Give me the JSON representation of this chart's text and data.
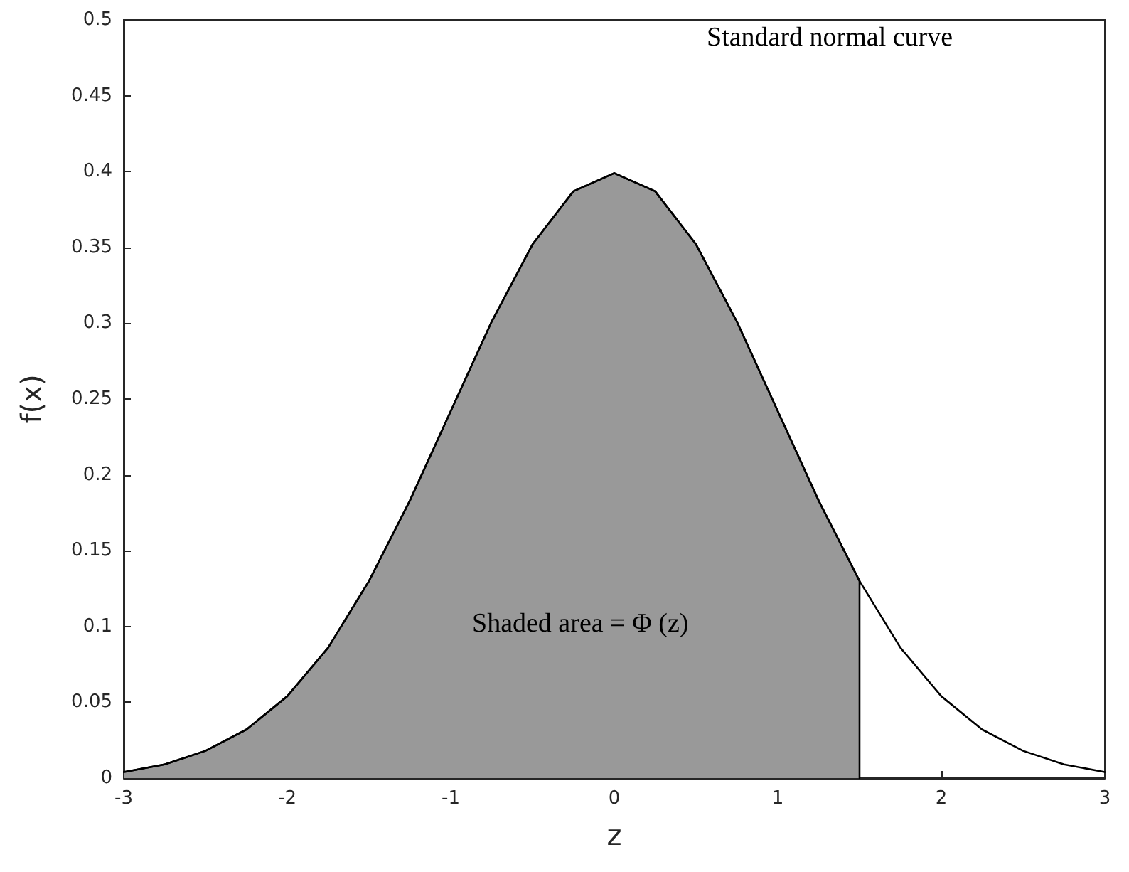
{
  "chart_data": {
    "type": "line",
    "xlabel": "z",
    "ylabel": "f(x)",
    "annotations": [
      "Standard normal curve",
      "Shaded area = Φ (z)"
    ],
    "xlim": [
      -3,
      3
    ],
    "xticks": [
      -3,
      -2,
      -1,
      0,
      1,
      2,
      3
    ],
    "ylim": [
      0,
      0.5
    ],
    "yticks": [
      0,
      0.05,
      0.1,
      0.15,
      0.2,
      0.25,
      0.3,
      0.35,
      0.4,
      0.45,
      0.5
    ],
    "grid": false,
    "marker": "none",
    "line_style": "solid",
    "series": [
      {
        "type": "area",
        "color": "#999999",
        "x": [
          -3,
          -2.75,
          -2.5,
          -2.25,
          -2,
          -1.75,
          -1.5,
          -1.25,
          -1,
          -0.75,
          -0.5,
          -0.25,
          0,
          0.25,
          0.5,
          0.75,
          1,
          1.25,
          1.5,
          1.5
        ],
        "values": [
          0.004,
          0.009,
          0.018,
          0.032,
          0.054,
          0.086,
          0.13,
          0.183,
          0.242,
          0.301,
          0.352,
          0.387,
          0.399,
          0.387,
          0.352,
          0.301,
          0.242,
          0.183,
          0.13,
          0
        ]
      },
      {
        "color": "#000000",
        "x": [
          -3,
          -2.75,
          -2.5,
          -2.25,
          -2,
          -1.75,
          -1.5,
          -1.25,
          -1,
          -0.75,
          -0.5,
          -0.25,
          0,
          0.25,
          0.5,
          0.75,
          1,
          1.25,
          1.5,
          1.75,
          2,
          2.25,
          2.5,
          2.75,
          3
        ],
        "values": [
          0.004,
          0.009,
          0.018,
          0.032,
          0.054,
          0.086,
          0.13,
          0.183,
          0.242,
          0.301,
          0.352,
          0.387,
          0.399,
          0.387,
          0.352,
          0.301,
          0.242,
          0.183,
          0.13,
          0.086,
          0.054,
          0.032,
          0.018,
          0.009,
          0.004
        ]
      }
    ]
  }
}
